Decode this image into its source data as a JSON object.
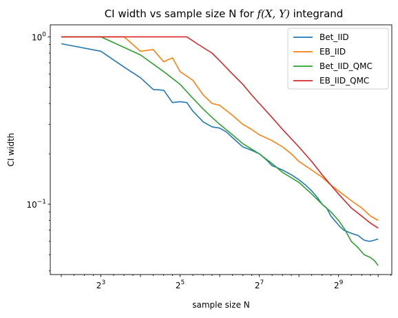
{
  "chart_data": {
    "type": "line",
    "title": "CI width vs sample size N for f(X, Y) integrand",
    "title_parts": {
      "prefix": "CI width vs sample size N for ",
      "math": "f(X, Y)",
      "suffix": " integrand"
    },
    "xlabel": "sample size N",
    "ylabel": "CI width",
    "xscale": "log2",
    "yscale": "log10",
    "xlim": [
      3.3,
      1300
    ],
    "ylim": [
      0.038,
      1.18
    ],
    "grid": false,
    "legend_position": "top-right",
    "x_ticks": [
      {
        "value": 8,
        "base": "2",
        "exp": "3"
      },
      {
        "value": 32,
        "base": "2",
        "exp": "5"
      },
      {
        "value": 128,
        "base": "2",
        "exp": "7"
      },
      {
        "value": 512,
        "base": "2",
        "exp": "9"
      }
    ],
    "y_ticks": [
      {
        "value": 1,
        "base": "10",
        "exp": "0"
      },
      {
        "value": 0.1,
        "base": "10",
        "exp": "−1"
      }
    ],
    "series": [
      {
        "name": "Bet_IID",
        "color": "#1f77b4",
        "points": [
          [
            4,
            0.91
          ],
          [
            8,
            0.82
          ],
          [
            12,
            0.66
          ],
          [
            16,
            0.57
          ],
          [
            20,
            0.485
          ],
          [
            24,
            0.48
          ],
          [
            28,
            0.405
          ],
          [
            32,
            0.41
          ],
          [
            36,
            0.405
          ],
          [
            40,
            0.36
          ],
          [
            48,
            0.31
          ],
          [
            56,
            0.29
          ],
          [
            64,
            0.285
          ],
          [
            72,
            0.27
          ],
          [
            80,
            0.25
          ],
          [
            96,
            0.22
          ],
          [
            112,
            0.21
          ],
          [
            128,
            0.2
          ],
          [
            144,
            0.185
          ],
          [
            160,
            0.17
          ],
          [
            176,
            0.165
          ],
          [
            192,
            0.16
          ],
          [
            224,
            0.15
          ],
          [
            256,
            0.14
          ],
          [
            288,
            0.13
          ],
          [
            320,
            0.12
          ],
          [
            352,
            0.11
          ],
          [
            384,
            0.1
          ],
          [
            416,
            0.095
          ],
          [
            448,
            0.085
          ],
          [
            512,
            0.075
          ],
          [
            560,
            0.07
          ],
          [
            640,
            0.067
          ],
          [
            720,
            0.065
          ],
          [
            800,
            0.061
          ],
          [
            880,
            0.06
          ],
          [
            960,
            0.061
          ],
          [
            1024,
            0.062
          ]
        ]
      },
      {
        "name": "EB_IID",
        "color": "#ff7f0e",
        "points": [
          [
            4,
            1.0
          ],
          [
            12,
            1.0
          ],
          [
            16,
            0.82
          ],
          [
            20,
            0.84
          ],
          [
            24,
            0.71
          ],
          [
            28,
            0.75
          ],
          [
            32,
            0.62
          ],
          [
            40,
            0.55
          ],
          [
            48,
            0.45
          ],
          [
            56,
            0.4
          ],
          [
            64,
            0.39
          ],
          [
            80,
            0.34
          ],
          [
            96,
            0.3
          ],
          [
            112,
            0.28
          ],
          [
            128,
            0.26
          ],
          [
            160,
            0.24
          ],
          [
            192,
            0.22
          ],
          [
            224,
            0.2
          ],
          [
            256,
            0.18
          ],
          [
            320,
            0.16
          ],
          [
            384,
            0.145
          ],
          [
            448,
            0.13
          ],
          [
            512,
            0.12
          ],
          [
            640,
            0.105
          ],
          [
            768,
            0.095
          ],
          [
            896,
            0.085
          ],
          [
            1024,
            0.08
          ]
        ]
      },
      {
        "name": "Bet_IID_QMC",
        "color": "#2ca02c",
        "points": [
          [
            4,
            1.0
          ],
          [
            8,
            1.0
          ],
          [
            16,
            0.78
          ],
          [
            24,
            0.62
          ],
          [
            32,
            0.52
          ],
          [
            40,
            0.43
          ],
          [
            48,
            0.37
          ],
          [
            56,
            0.33
          ],
          [
            64,
            0.3
          ],
          [
            80,
            0.26
          ],
          [
            96,
            0.23
          ],
          [
            128,
            0.2
          ],
          [
            160,
            0.175
          ],
          [
            192,
            0.155
          ],
          [
            256,
            0.135
          ],
          [
            320,
            0.115
          ],
          [
            384,
            0.1
          ],
          [
            448,
            0.09
          ],
          [
            512,
            0.08
          ],
          [
            576,
            0.07
          ],
          [
            640,
            0.06
          ],
          [
            720,
            0.055
          ],
          [
            800,
            0.05
          ],
          [
            896,
            0.048
          ],
          [
            960,
            0.046
          ],
          [
            1024,
            0.043
          ]
        ]
      },
      {
        "name": "EB_IID_QMC",
        "color": "#d62728",
        "points": [
          [
            4,
            1.0
          ],
          [
            36,
            1.0
          ],
          [
            44,
            0.9
          ],
          [
            56,
            0.8
          ],
          [
            64,
            0.72
          ],
          [
            80,
            0.6
          ],
          [
            96,
            0.52
          ],
          [
            112,
            0.45
          ],
          [
            128,
            0.4
          ],
          [
            160,
            0.33
          ],
          [
            192,
            0.28
          ],
          [
            256,
            0.22
          ],
          [
            320,
            0.18
          ],
          [
            384,
            0.15
          ],
          [
            448,
            0.13
          ],
          [
            512,
            0.115
          ],
          [
            640,
            0.095
          ],
          [
            768,
            0.085
          ],
          [
            896,
            0.077
          ],
          [
            1024,
            0.072
          ]
        ]
      }
    ]
  }
}
